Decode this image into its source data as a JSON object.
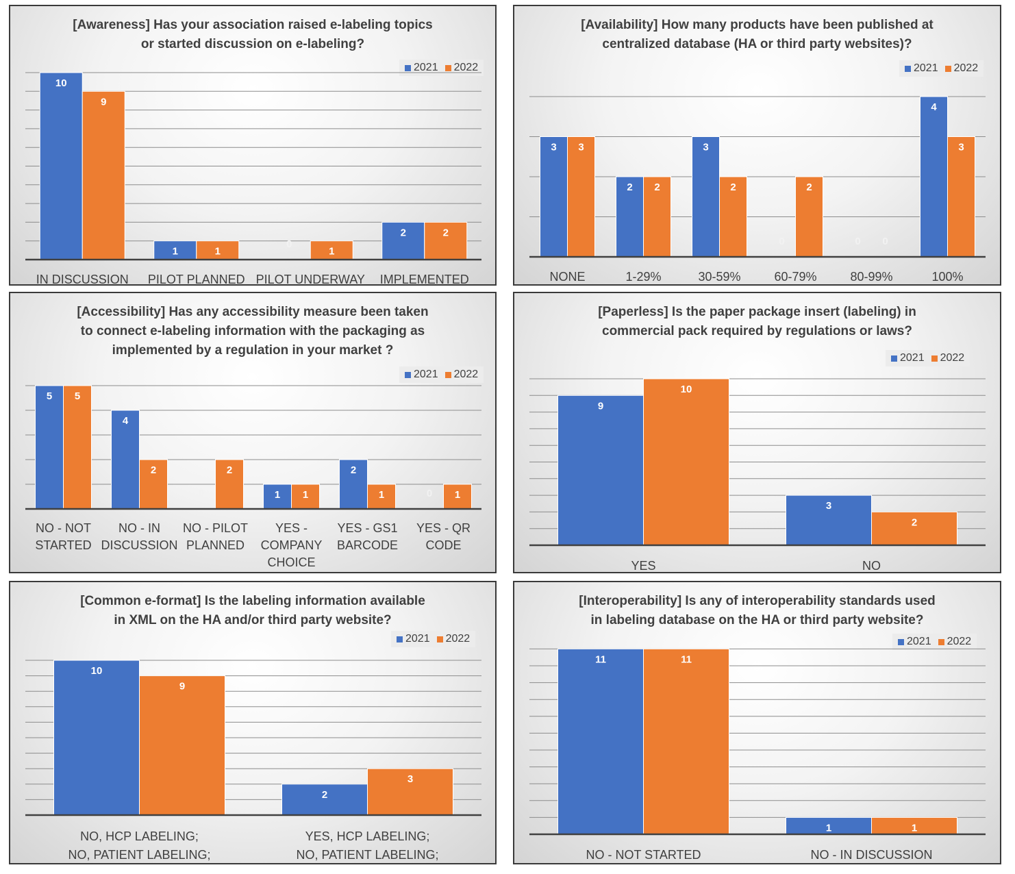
{
  "colors": {
    "series_2021": "#4472c4",
    "series_2022": "#ed7d31",
    "grid": "#8c8c8c",
    "axis": "#404040",
    "text": "#404040"
  },
  "chart_data": [
    {
      "type": "bar",
      "title": "[Awareness] Has your association raised e-labeling topics\nor started discussion on e-labeling?",
      "categories": [
        [
          "IN DISCUSSION"
        ],
        [
          "PILOT PLANNED"
        ],
        [
          "PILOT UNDERWAY"
        ],
        [
          "IMPLEMENTED"
        ]
      ],
      "series": [
        {
          "name": "2021",
          "values": [
            10,
            1,
            0,
            2
          ]
        },
        {
          "name": "2022",
          "values": [
            9,
            1,
            1,
            2
          ]
        }
      ],
      "ylim": [
        0,
        10
      ],
      "legend": "top-right",
      "grid": true
    },
    {
      "type": "bar",
      "title": "[Availability] How many products have been published at\ncentralized database (HA or third party websites)?",
      "categories": [
        [
          "NONE"
        ],
        [
          "1-29%"
        ],
        [
          "30-59%"
        ],
        [
          "60-79%"
        ],
        [
          "80-99%"
        ],
        [
          "100%"
        ]
      ],
      "series": [
        {
          "name": "2021",
          "values": [
            3,
            2,
            3,
            0,
            0,
            4
          ]
        },
        {
          "name": "2022",
          "values": [
            3,
            2,
            2,
            2,
            0,
            3
          ]
        }
      ],
      "ylim": [
        0,
        4
      ],
      "legend": "top-right",
      "grid": true
    },
    {
      "type": "bar",
      "title": "[Accessibility] Has any accessibility measure been taken\nto connect e-labeling information with the packaging as\nimplemented by a regulation in your market ?",
      "categories": [
        [
          "NO - NOT",
          "STARTED"
        ],
        [
          "NO - IN",
          "DISCUSSION"
        ],
        [
          "NO - PILOT",
          "PLANNED"
        ],
        [
          "YES -",
          "COMPANY",
          "CHOICE"
        ],
        [
          "YES - GS1",
          "BARCODE"
        ],
        [
          "YES - QR",
          "CODE"
        ]
      ],
      "series": [
        {
          "name": "2021",
          "values": [
            5,
            4,
            0,
            1,
            2,
            0
          ]
        },
        {
          "name": "2022",
          "values": [
            5,
            2,
            2,
            1,
            1,
            1
          ]
        }
      ],
      "ylim": [
        0,
        5
      ],
      "legend": "top-right",
      "grid": true
    },
    {
      "type": "bar",
      "title": "[Paperless] Is the paper package insert (labeling) in\ncommercial pack required by regulations or laws?",
      "categories": [
        [
          "YES"
        ],
        [
          "NO"
        ]
      ],
      "series": [
        {
          "name": "2021",
          "values": [
            9,
            3
          ]
        },
        {
          "name": "2022",
          "values": [
            10,
            2
          ]
        }
      ],
      "ylim": [
        0,
        10
      ],
      "legend": "top-right",
      "grid": true
    },
    {
      "type": "bar",
      "title": "[Common e-format] Is the labeling information available\nin XML on the HA and/or third party website?",
      "categories": [
        [
          "NO, HCP LABELING;",
          "NO, PATIENT LABELING;"
        ],
        [
          "YES, HCP LABELING;",
          "NO, PATIENT LABELING;"
        ]
      ],
      "series": [
        {
          "name": "2021",
          "values": [
            10,
            2
          ]
        },
        {
          "name": "2022",
          "values": [
            9,
            3
          ]
        }
      ],
      "ylim": [
        0,
        10
      ],
      "legend": "top-right",
      "grid": true
    },
    {
      "type": "bar",
      "title": "[Interoperability] Is any of interoperability standards used\nin labeling database on the HA or third party website?",
      "categories": [
        [
          "NO - NOT STARTED"
        ],
        [
          "NO - IN DISCUSSION"
        ]
      ],
      "series": [
        {
          "name": "2021",
          "values": [
            11,
            1
          ]
        },
        {
          "name": "2022",
          "values": [
            11,
            1
          ]
        }
      ],
      "ylim": [
        0,
        11
      ],
      "legend": "top-right",
      "grid": true
    }
  ]
}
